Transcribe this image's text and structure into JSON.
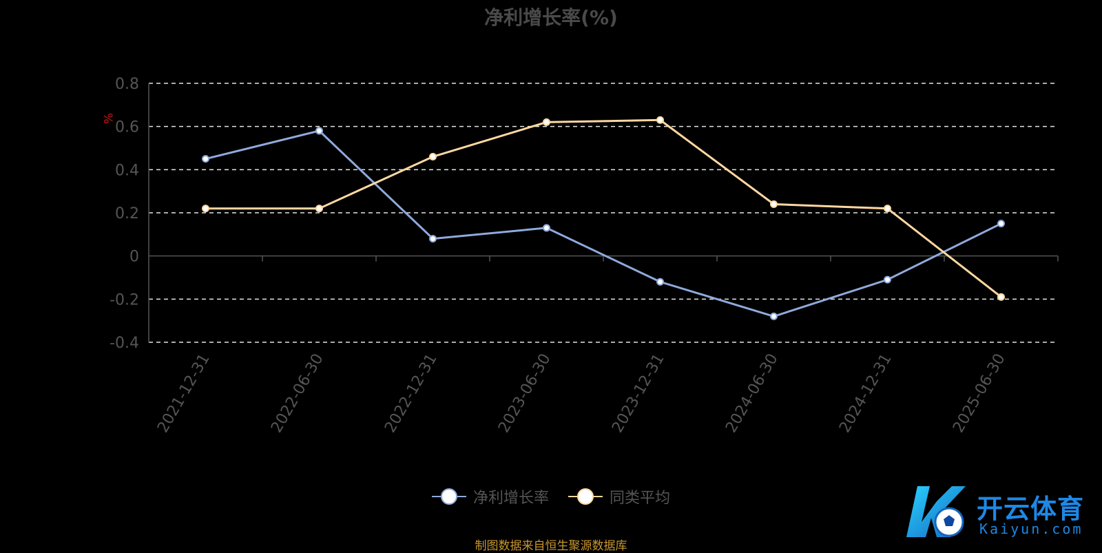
{
  "title": "净利增长率(%)",
  "unit_label": "%",
  "source_note": "制图数据来自恒生聚源数据库",
  "logo": {
    "name_cn": "开云体育",
    "name_en": "Kaiyun.com"
  },
  "colors": {
    "series1": "#8faadc",
    "series2": "#ffd8a0",
    "unit": "#d01010",
    "source": "#c8962e",
    "logo": "#1e88e5"
  },
  "legend": [
    {
      "label": "净利增长率",
      "color": "#8faadc"
    },
    {
      "label": "同类平均",
      "color": "#ffd8a0"
    }
  ],
  "chart_data": {
    "type": "line",
    "title": "净利增长率(%)",
    "ylabel": "%",
    "categories": [
      "2021-12-31",
      "2022-06-30",
      "2022-12-31",
      "2023-06-30",
      "2023-12-31",
      "2024-06-30",
      "2024-12-31",
      "2025-06-30"
    ],
    "yticks": [
      "0.8",
      "0.6",
      "0.4",
      "0.2",
      "0",
      "-0.2",
      "-0.4"
    ],
    "ylim": [
      -0.4,
      0.8
    ],
    "grid": true,
    "legend_position": "bottom",
    "series": [
      {
        "name": "净利增长率",
        "color": "#8faadc",
        "values": [
          0.45,
          0.58,
          0.08,
          0.13,
          -0.12,
          -0.28,
          -0.11,
          0.15
        ]
      },
      {
        "name": "同类平均",
        "color": "#ffd8a0",
        "values": [
          0.22,
          0.22,
          0.46,
          0.62,
          0.63,
          0.24,
          0.22,
          -0.19
        ]
      }
    ]
  }
}
